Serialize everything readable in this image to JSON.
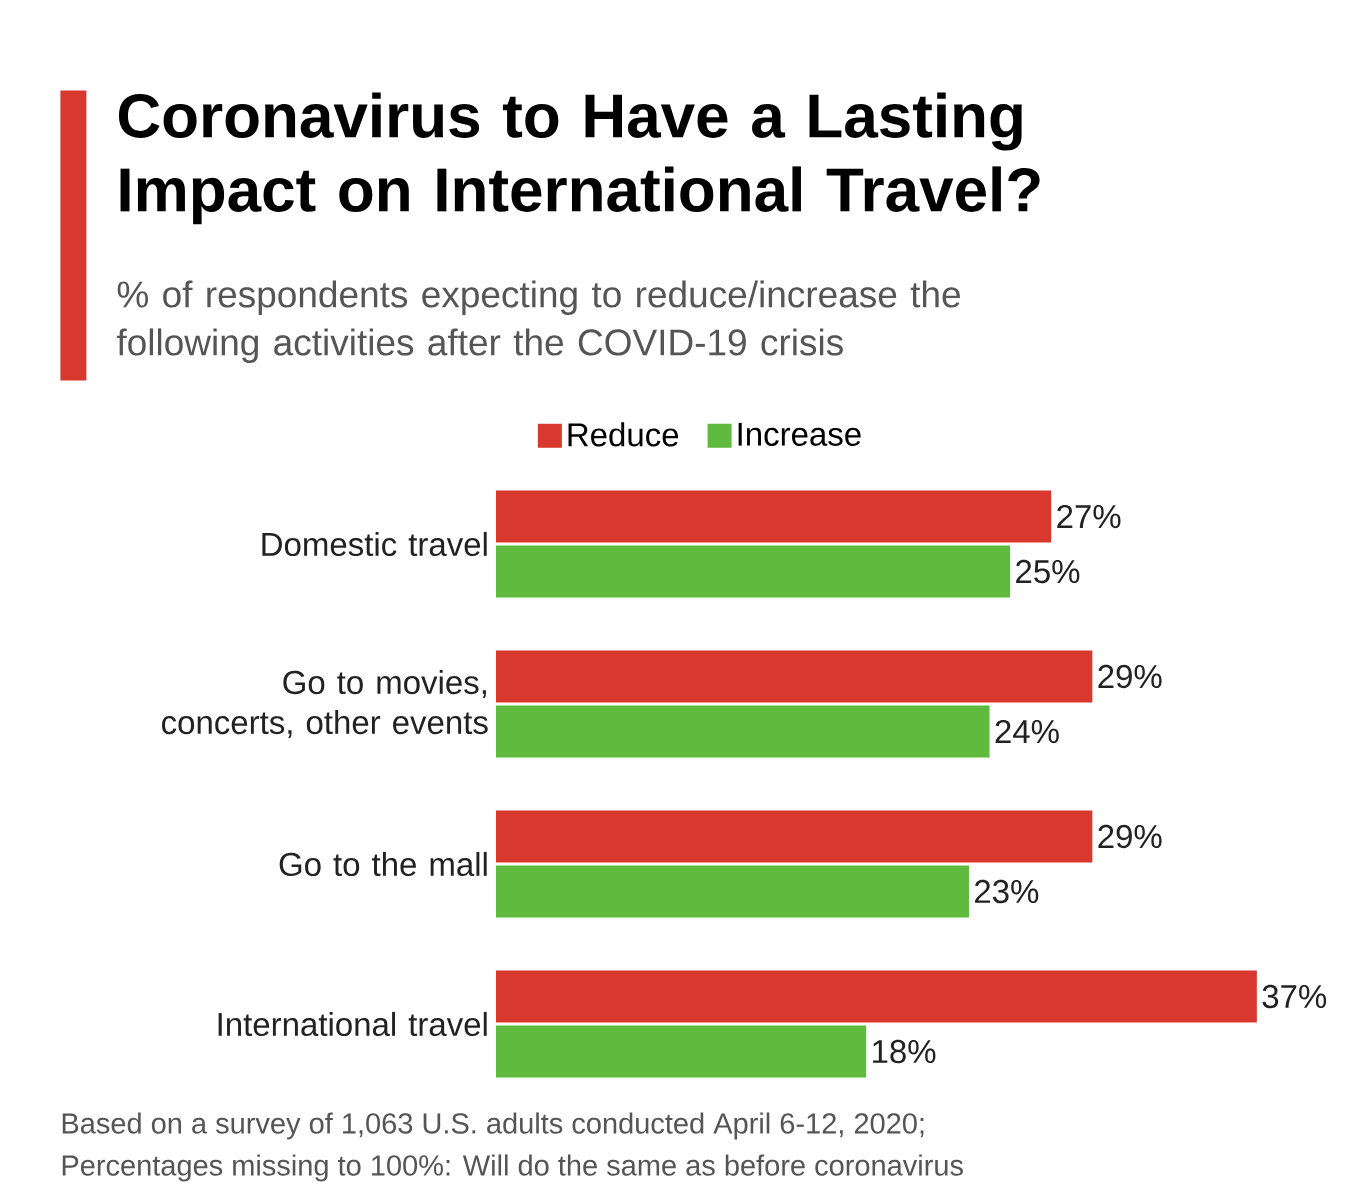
{
  "chart_data": {
    "type": "bar",
    "orientation": "horizontal",
    "title": "Coronavirus to Have a Lasting Impact on International Travel?",
    "subtitle": "% of respondents expecting to reduce/increase the following activities after the COVID-19 crisis",
    "categories": [
      "Domestic travel",
      "Go to movies, concerts, other events",
      "Go to the mall",
      "International travel"
    ],
    "series": [
      {
        "name": "Reduce",
        "color": "#d9382e",
        "values": [
          27,
          29,
          29,
          37
        ],
        "value_labels": [
          "27%",
          "29%",
          "29%",
          "37%"
        ]
      },
      {
        "name": "Increase",
        "color": "#5fba3e",
        "values": [
          25,
          24,
          23,
          18
        ],
        "value_labels": [
          "25%",
          "24%",
          "23%",
          "18%"
        ]
      }
    ],
    "legend": "top",
    "tick_labels": "y",
    "annotations": [
      "Based on a survey of 1,063 U.S. adults conducted April 6-12, 2020;",
      "Percentages missing to 100%: Will do the same as before coronavirus"
    ]
  }
}
